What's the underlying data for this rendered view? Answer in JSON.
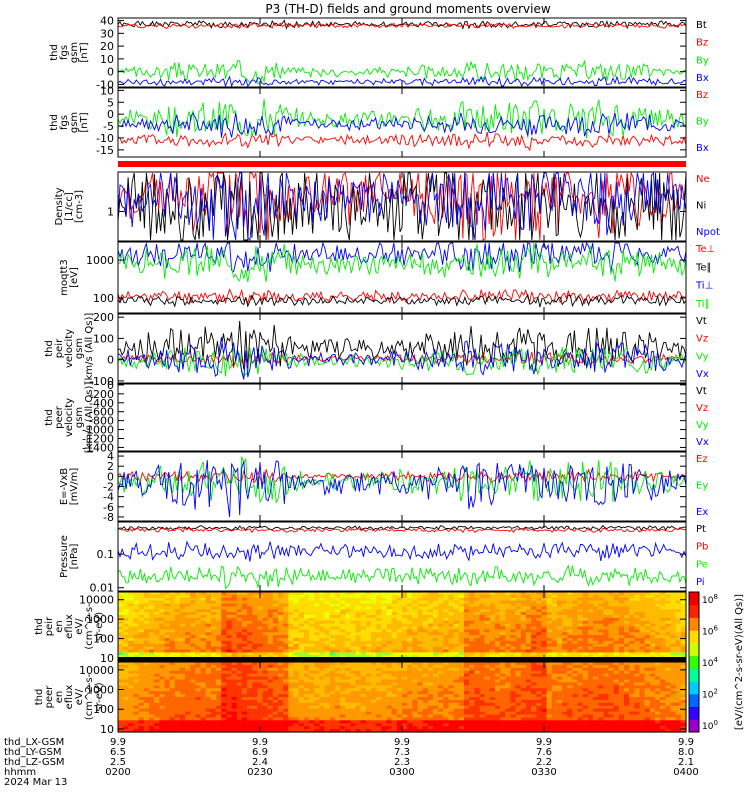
{
  "title": "P3 (TH-D) fields and ground moments overview",
  "chart_data": [
    {
      "type": "line",
      "id": "fgs_gsm_1",
      "ylabel": [
        "thd",
        "fgs",
        "gsm",
        "[nT]"
      ],
      "yticks": [
        -10,
        0,
        10,
        20,
        30,
        40
      ],
      "ylim": [
        -12,
        42
      ],
      "series": [
        {
          "name": "Bt",
          "color": "#000000",
          "base": 37,
          "amp": 2.0,
          "spike": 1.5,
          "seed": 1
        },
        {
          "name": "Bz",
          "color": "#ff0000",
          "base": 36,
          "amp": 1.5,
          "spike": 1.0,
          "seed": 2
        },
        {
          "name": "By",
          "color": "#00ee00",
          "base": 0,
          "amp": 2.0,
          "spike": 7.0,
          "seed": 3
        },
        {
          "name": "Bx",
          "color": "#0000ff",
          "base": -8,
          "amp": 1.5,
          "spike": 3.0,
          "seed": 4
        }
      ]
    },
    {
      "type": "line",
      "id": "fgs_gsm_2",
      "ylabel": [
        "thd",
        "fgs",
        "gsm",
        "[nT]"
      ],
      "yticks": [
        -15,
        -10,
        -5,
        0,
        5,
        10
      ],
      "ylim": [
        -18,
        11
      ],
      "series": [
        {
          "name": "Bz",
          "color": "#ff0000",
          "base": -11,
          "amp": 1.5,
          "spike": 2.5,
          "seed": 5
        },
        {
          "name": "By",
          "color": "#00ee00",
          "base": -2,
          "amp": 2.0,
          "spike": 7.0,
          "seed": 6
        },
        {
          "name": "Bx",
          "color": "#0000ff",
          "base": -4,
          "amp": 1.5,
          "spike": 4.0,
          "seed": 7
        }
      ]
    },
    {
      "type": "line",
      "id": "density",
      "scale": "log",
      "ylabel": [
        "Density",
        "[1/cc]",
        "[cm-3]"
      ],
      "yticks": [
        1
      ],
      "ylim": [
        0.3,
        5
      ],
      "series": [
        {
          "name": "Ne",
          "color": "#ff0000",
          "base": 1.8,
          "amp": 0.4,
          "spike": 1.6,
          "seed": 8
        },
        {
          "name": "Ni",
          "color": "#000000",
          "base": 1.2,
          "amp": 0.6,
          "spike": 1.8,
          "seed": 9
        },
        {
          "name": "Npot",
          "color": "#0000ff",
          "base": 1.7,
          "amp": 0.4,
          "spike": 1.5,
          "seed": 10
        }
      ]
    },
    {
      "type": "line",
      "id": "temperature",
      "scale": "log",
      "ylabel": [
        "moqtt3",
        "[eV]"
      ],
      "yticks": [
        100,
        1000
      ],
      "ylim": [
        40,
        3000
      ],
      "series": [
        {
          "name": "Te⊥",
          "color": "#ff0000",
          "base": 110,
          "amp": 0.12,
          "spike": 0.3,
          "seed": 11
        },
        {
          "name": "Te∥",
          "color": "#000000",
          "base": 85,
          "amp": 0.1,
          "spike": 0.25,
          "seed": 12
        },
        {
          "name": "Ti⊥",
          "color": "#0000ff",
          "base": 1400,
          "amp": 0.25,
          "spike": 0.9,
          "seed": 13
        },
        {
          "name": "Ti∥",
          "color": "#00ee00",
          "base": 800,
          "amp": 0.25,
          "spike": 1.0,
          "seed": 14
        }
      ]
    },
    {
      "type": "line",
      "id": "peir_velocity",
      "ylabel": [
        "thd",
        "peir",
        "velocity",
        "gsm",
        "[km/s (All Qs)]"
      ],
      "yticks": [
        -100,
        0,
        100,
        200
      ],
      "ylim": [
        -110,
        215
      ],
      "series": [
        {
          "name": "Vt",
          "color": "#000000",
          "base": 60,
          "amp": 25,
          "spike": 90,
          "seed": 15
        },
        {
          "name": "Vz",
          "color": "#ff0000",
          "base": 5,
          "amp": 10,
          "spike": 25,
          "seed": 16
        },
        {
          "name": "Vy",
          "color": "#00ee00",
          "base": -5,
          "amp": 15,
          "spike": 60,
          "seed": 17
        },
        {
          "name": "Vx",
          "color": "#0000ff",
          "base": 0,
          "amp": 20,
          "spike": 70,
          "seed": 18
        }
      ]
    },
    {
      "type": "line",
      "id": "peer_velocity",
      "ylabel": [
        "thd",
        "peer",
        "velocity",
        "gsm",
        "[km/s (All Qs)]"
      ],
      "yticks": [
        -1400,
        -1200,
        -1000,
        -800,
        -600,
        -400,
        -200,
        0
      ],
      "ylim": [
        -1480,
        20
      ],
      "series": [
        {
          "name": "Vt",
          "color": "#000000"
        },
        {
          "name": "Vz",
          "color": "#ff0000"
        },
        {
          "name": "Vy",
          "color": "#00ee00"
        },
        {
          "name": "Vx",
          "color": "#0000ff"
        }
      ]
    },
    {
      "type": "line",
      "id": "e_field",
      "ylabel": [
        "E=-VxB",
        "[mV/m]"
      ],
      "yticks": [
        -8,
        -6,
        -4,
        -2,
        0,
        2,
        4
      ],
      "ylim": [
        -8.8,
        4.8
      ],
      "series": [
        {
          "name": "Ez",
          "color": "#ff0000",
          "base": 0,
          "amp": 0.5,
          "spike": 1.0,
          "seed": 19
        },
        {
          "name": "Ey",
          "color": "#00ee00",
          "base": -1,
          "amp": 1.0,
          "spike": 3.5,
          "seed": 20
        },
        {
          "name": "Ex",
          "color": "#0000ff",
          "base": -1.5,
          "amp": 1.2,
          "spike": 4.5,
          "seed": 21
        }
      ]
    },
    {
      "type": "line",
      "id": "pressure",
      "scale": "log",
      "ylabel": [
        "Pressure",
        "[nPa]"
      ],
      "yticks": [
        0.01,
        0.1
      ],
      "ylim": [
        0.008,
        0.9
      ],
      "series": [
        {
          "name": "Pt",
          "color": "#000000",
          "base": 0.6,
          "amp": 0.05,
          "spike": 0.1,
          "seed": 22
        },
        {
          "name": "Pb",
          "color": "#ff0000",
          "base": 0.52,
          "amp": 0.05,
          "spike": 0.1,
          "seed": 23
        },
        {
          "name": "Pe",
          "color": "#00ee00",
          "base": 0.022,
          "amp": 0.2,
          "spike": 0.5,
          "seed": 24
        },
        {
          "name": "Pi",
          "color": "#0000ff",
          "base": 0.12,
          "amp": 0.2,
          "spike": 0.4,
          "seed": 25
        }
      ]
    },
    {
      "type": "heatmap",
      "id": "peir_en_eflux",
      "scale": "log",
      "ylabel": [
        "thd",
        "peir",
        "en",
        "eflux",
        "eV/",
        "(cm^2-s-",
        "sr-eV)"
      ],
      "yticks": [
        10,
        100,
        1000,
        10000
      ],
      "ylim": [
        7,
        25000
      ],
      "seed": 26
    },
    {
      "type": "heatmap",
      "id": "peer_en_eflux",
      "scale": "log",
      "ylabel": [
        "thd",
        "peer",
        "en",
        "eflux",
        "eV/",
        "(cm^2-s-",
        "sr-eV)"
      ],
      "yticks": [
        10,
        100,
        1000,
        10000
      ],
      "ylim": [
        7,
        25000
      ],
      "seed": 27
    }
  ],
  "colorbar": {
    "label": "[eV/(cm^2-s-sr-eV)(All Qs)]",
    "ticks": [
      "10^0",
      "10^2",
      "10^4",
      "10^6",
      "10^8"
    ]
  },
  "xaxis": {
    "ticks": [
      "0200",
      "0230",
      "0300",
      "0330",
      "0400"
    ],
    "rows": [
      {
        "label": "thd_LX-GSM",
        "values": [
          "9.9",
          "9.9",
          "9.9",
          "9.9",
          "9.9"
        ]
      },
      {
        "label": "thd_LY-GSM",
        "values": [
          "6.5",
          "6.9",
          "7.3",
          "7.6",
          "8.0"
        ]
      },
      {
        "label": "thd_LZ-GSM",
        "values": [
          "2.5",
          "2.4",
          "2.3",
          "2.2",
          "2.1"
        ]
      },
      {
        "label": "hhmm",
        "values": [
          "0200",
          "0230",
          "0300",
          "0330",
          "0400"
        ]
      }
    ],
    "date": "2024 Mar 13"
  }
}
